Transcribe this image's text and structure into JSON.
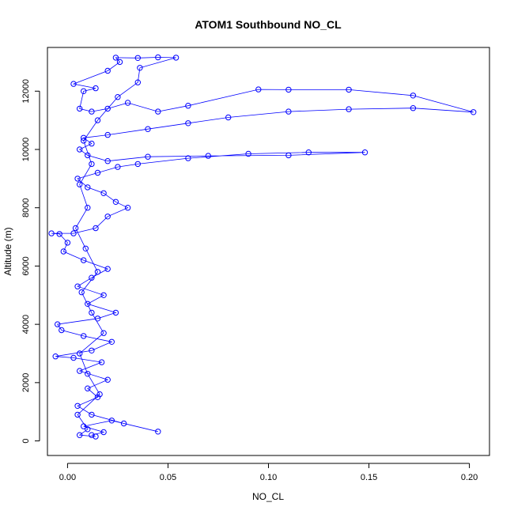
{
  "chart_data": {
    "type": "scatter",
    "title": "ATOM1 Southbound NO_CL",
    "xlabel": "NO_CL",
    "ylabel": "Altitude (m)",
    "xlim": [
      -0.01,
      0.21
    ],
    "ylim": [
      -500,
      13500
    ],
    "xticks": [
      0.0,
      0.05,
      0.1,
      0.15,
      0.2
    ],
    "xtick_labels": [
      "0.00",
      "0.05",
      "0.10",
      "0.15",
      "0.20"
    ],
    "yticks": [
      0,
      2000,
      4000,
      6000,
      8000,
      10000,
      12000
    ],
    "ytick_labels": [
      "0",
      "2000",
      "4000",
      "6000",
      "8000",
      "10000",
      "12000"
    ],
    "grid": false,
    "series": [
      {
        "color": "#0000ff",
        "marker": "open-circle",
        "connected": true,
        "points": [
          [
            0.012,
            200
          ],
          [
            0.018,
            300
          ],
          [
            0.008,
            500
          ],
          [
            0.022,
            700
          ],
          [
            0.045,
            320
          ],
          [
            0.028,
            600
          ],
          [
            0.012,
            900
          ],
          [
            0.005,
            1200
          ],
          [
            0.015,
            1500
          ],
          [
            0.01,
            1800
          ],
          [
            0.02,
            2100
          ],
          [
            0.006,
            2400
          ],
          [
            0.017,
            2700
          ],
          [
            0.003,
            2850
          ],
          [
            -0.006,
            2900
          ],
          [
            0.012,
            3100
          ],
          [
            0.022,
            3400
          ],
          [
            0.008,
            3600
          ],
          [
            -0.003,
            3800
          ],
          [
            -0.005,
            4000
          ],
          [
            0.015,
            4200
          ],
          [
            0.024,
            4400
          ],
          [
            0.01,
            4700
          ],
          [
            0.018,
            5000
          ],
          [
            0.005,
            5300
          ],
          [
            0.012,
            5600
          ],
          [
            0.02,
            5900
          ],
          [
            0.008,
            6200
          ],
          [
            -0.002,
            6500
          ],
          [
            0.0,
            6800
          ],
          [
            -0.004,
            7100
          ],
          [
            -0.008,
            7120
          ],
          [
            0.003,
            7120
          ],
          [
            0.014,
            7300
          ],
          [
            0.02,
            7700
          ],
          [
            0.03,
            8000
          ],
          [
            0.024,
            8200
          ],
          [
            0.018,
            8500
          ],
          [
            0.01,
            8700
          ],
          [
            0.005,
            9000
          ],
          [
            0.015,
            9200
          ],
          [
            0.025,
            9400
          ],
          [
            0.035,
            9500
          ],
          [
            0.06,
            9700
          ],
          [
            0.09,
            9850
          ],
          [
            0.12,
            9900
          ],
          [
            0.148,
            9900
          ],
          [
            0.11,
            9800
          ],
          [
            0.07,
            9780
          ],
          [
            0.04,
            9750
          ],
          [
            0.02,
            9600
          ],
          [
            0.01,
            9800
          ],
          [
            0.006,
            10000
          ],
          [
            0.012,
            10200
          ],
          [
            0.008,
            10400
          ],
          [
            0.02,
            10500
          ],
          [
            0.04,
            10700
          ],
          [
            0.06,
            10900
          ],
          [
            0.08,
            11100
          ],
          [
            0.11,
            11300
          ],
          [
            0.14,
            11380
          ],
          [
            0.172,
            11420
          ],
          [
            0.202,
            11280
          ],
          [
            0.172,
            11850
          ],
          [
            0.14,
            12050
          ],
          [
            0.11,
            12050
          ],
          [
            0.095,
            12060
          ],
          [
            0.06,
            11500
          ],
          [
            0.045,
            11300
          ],
          [
            0.03,
            11600
          ],
          [
            0.02,
            11400
          ],
          [
            0.012,
            11300
          ],
          [
            0.006,
            11400
          ],
          [
            0.008,
            12000
          ],
          [
            0.014,
            12100
          ],
          [
            0.003,
            12250
          ],
          [
            0.02,
            12700
          ],
          [
            0.026,
            13000
          ],
          [
            0.024,
            13150
          ],
          [
            0.035,
            13140
          ],
          [
            0.045,
            13160
          ],
          [
            0.054,
            13150
          ],
          [
            0.036,
            12800
          ],
          [
            0.035,
            12300
          ],
          [
            0.025,
            11800
          ],
          [
            0.015,
            11000
          ],
          [
            0.008,
            10300
          ],
          [
            0.012,
            9500
          ],
          [
            0.006,
            8800
          ],
          [
            0.01,
            8000
          ],
          [
            0.004,
            7300
          ],
          [
            0.009,
            6600
          ],
          [
            0.015,
            5800
          ],
          [
            0.007,
            5100
          ],
          [
            0.012,
            4400
          ],
          [
            0.018,
            3700
          ],
          [
            0.006,
            3000
          ],
          [
            0.01,
            2300
          ],
          [
            0.016,
            1600
          ],
          [
            0.005,
            900
          ],
          [
            0.01,
            400
          ],
          [
            0.006,
            200
          ],
          [
            0.014,
            150
          ]
        ]
      }
    ]
  }
}
